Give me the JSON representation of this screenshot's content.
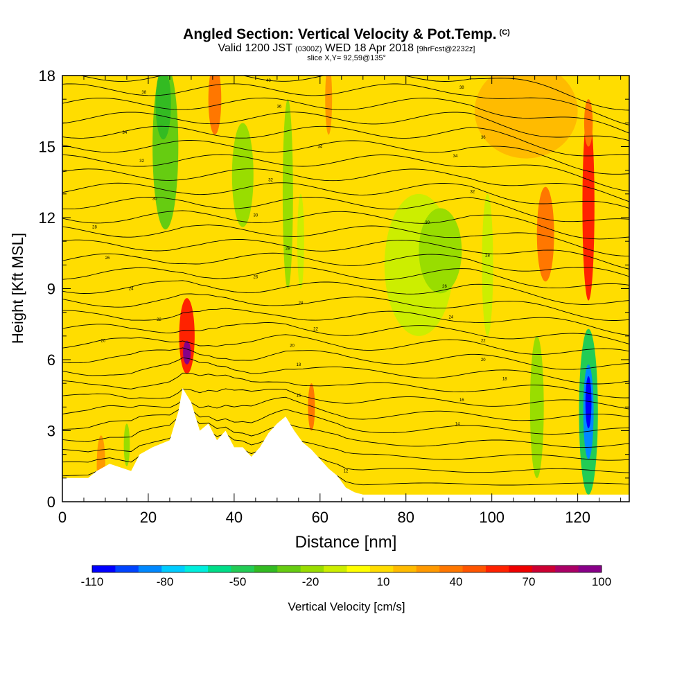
{
  "chart_data": {
    "type": "heatmap",
    "title": "Angled Section: Vertical Velocity & Pot.Temp.",
    "title_suffix": "(C)",
    "subtitle": {
      "valid": "Valid 1200 JST",
      "zulu": "(0300Z)",
      "date": "WED 18 Apr 2018",
      "forecast": "[9hrFcst@2232z]"
    },
    "slice_label": "slice X,Y= 92,59@135°",
    "xlabel": "Distance [nm]",
    "ylabel": "Height [Kft MSL]",
    "xlim": [
      0,
      132
    ],
    "ylim": [
      0,
      18
    ],
    "x_ticks": [
      0,
      20,
      40,
      60,
      80,
      100,
      120
    ],
    "y_ticks": [
      0,
      3,
      6,
      9,
      12,
      15,
      18
    ],
    "colorbar": {
      "label": "Vertical Velocity [cm/s]",
      "labels": [
        -110,
        -80,
        -50,
        -20,
        10,
        40,
        70,
        100
      ],
      "colors": [
        "#0000ff",
        "#0044ff",
        "#0088ff",
        "#00ccff",
        "#00eedd",
        "#00dd88",
        "#22cc55",
        "#33bb22",
        "#66cc11",
        "#99dd00",
        "#ccee00",
        "#ffff00",
        "#ffdd00",
        "#ffbb00",
        "#ff9900",
        "#ff7700",
        "#ff5500",
        "#ff2200",
        "#ee0000",
        "#cc0033",
        "#aa0066",
        "#880088"
      ]
    },
    "background_value": 5,
    "terrain_kft": [
      [
        0,
        1
      ],
      [
        6,
        1
      ],
      [
        8,
        1.3
      ],
      [
        11,
        1.6
      ],
      [
        16,
        1.3
      ],
      [
        18,
        2
      ],
      [
        21,
        2.3
      ],
      [
        25,
        2.6
      ],
      [
        27,
        3.8
      ],
      [
        28,
        4.8
      ],
      [
        30,
        4.2
      ],
      [
        32,
        3
      ],
      [
        34,
        3.3
      ],
      [
        36,
        2.6
      ],
      [
        38,
        3
      ],
      [
        40,
        2.3
      ],
      [
        42,
        2.3
      ],
      [
        44,
        1.9
      ],
      [
        46,
        2.3
      ],
      [
        48,
        2.9
      ],
      [
        50,
        3.3
      ],
      [
        52,
        3.6
      ],
      [
        54,
        3
      ],
      [
        56,
        2.5
      ],
      [
        58,
        2.2
      ],
      [
        60,
        1.8
      ],
      [
        62,
        1.4
      ],
      [
        64,
        1.1
      ],
      [
        66,
        0.6
      ],
      [
        68,
        0.4
      ],
      [
        70,
        0.3
      ],
      [
        132,
        0.3
      ]
    ],
    "velocity_features": [
      {
        "x": 24,
        "y": 15,
        "rx": 3,
        "ry": 3.5,
        "value": -30
      },
      {
        "x": 23.5,
        "y": 16.8,
        "rx": 1.8,
        "ry": 1.5,
        "value": -40
      },
      {
        "x": 29,
        "y": 7,
        "rx": 1.8,
        "ry": 1.6,
        "value": 55
      },
      {
        "x": 29,
        "y": 6.3,
        "rx": 0.9,
        "ry": 0.5,
        "value": 100
      },
      {
        "x": 35.5,
        "y": 17,
        "rx": 1.5,
        "ry": 1.5,
        "value": 35
      },
      {
        "x": 42,
        "y": 13.8,
        "rx": 2.5,
        "ry": 2.2,
        "value": -18
      },
      {
        "x": 52.5,
        "y": 13,
        "rx": 1.2,
        "ry": 4,
        "value": -16
      },
      {
        "x": 55.5,
        "y": 11,
        "rx": 0.8,
        "ry": 2,
        "value": -12
      },
      {
        "x": 58,
        "y": 4,
        "rx": 0.8,
        "ry": 1,
        "value": 35
      },
      {
        "x": 62,
        "y": 17,
        "rx": 0.8,
        "ry": 1.5,
        "value": 25
      },
      {
        "x": 83,
        "y": 10,
        "rx": 8,
        "ry": 3,
        "value": -14
      },
      {
        "x": 88,
        "y": 10.6,
        "rx": 5,
        "ry": 1.8,
        "value": -20
      },
      {
        "x": 99,
        "y": 10,
        "rx": 1.3,
        "ry": 3,
        "value": -14
      },
      {
        "x": 112.5,
        "y": 11.3,
        "rx": 2,
        "ry": 2,
        "value": 38
      },
      {
        "x": 122.5,
        "y": 12.5,
        "rx": 1.4,
        "ry": 4,
        "value": 60
      },
      {
        "x": 122.5,
        "y": 16,
        "rx": 1,
        "ry": 1,
        "value": 40
      },
      {
        "x": 110.5,
        "y": 4,
        "rx": 1.6,
        "ry": 3,
        "value": -22
      },
      {
        "x": 122.5,
        "y": 3.8,
        "rx": 2.2,
        "ry": 3.5,
        "value": -45
      },
      {
        "x": 122.5,
        "y": 3.8,
        "rx": 1.2,
        "ry": 2,
        "value": -85
      },
      {
        "x": 122.5,
        "y": 4.2,
        "rx": 0.7,
        "ry": 1.1,
        "value": -110
      },
      {
        "x": 108,
        "y": 16.5,
        "rx": 12,
        "ry": 2,
        "value": 18
      },
      {
        "x": 9,
        "y": 1.5,
        "rx": 1,
        "ry": 1.3,
        "value": 25
      },
      {
        "x": 15,
        "y": 2.4,
        "rx": 0.7,
        "ry": 0.9,
        "value": -15
      }
    ],
    "isentrope_labels": [
      {
        "x": 19,
        "y": 17.3,
        "text": "38"
      },
      {
        "x": 48,
        "y": 17.8,
        "text": "40"
      },
      {
        "x": 93,
        "y": 17.5,
        "text": "38"
      },
      {
        "x": 14.5,
        "y": 15.6,
        "text": "34"
      },
      {
        "x": 50.5,
        "y": 16.7,
        "text": "36"
      },
      {
        "x": 98,
        "y": 15.4,
        "text": "36"
      },
      {
        "x": 60,
        "y": 15,
        "text": "34"
      },
      {
        "x": 18.5,
        "y": 14.4,
        "text": "32"
      },
      {
        "x": 91.5,
        "y": 14.6,
        "text": "34"
      },
      {
        "x": 48.5,
        "y": 13.6,
        "text": "32"
      },
      {
        "x": 95.5,
        "y": 13.1,
        "text": "32"
      },
      {
        "x": 21.5,
        "y": 12.8,
        "text": "30"
      },
      {
        "x": 45,
        "y": 12.1,
        "text": "30"
      },
      {
        "x": 85,
        "y": 11.8,
        "text": "30"
      },
      {
        "x": 7.5,
        "y": 11.6,
        "text": "28"
      },
      {
        "x": 52.5,
        "y": 10.7,
        "text": "28"
      },
      {
        "x": 99,
        "y": 10.4,
        "text": "28"
      },
      {
        "x": 10.5,
        "y": 10.3,
        "text": "26"
      },
      {
        "x": 45,
        "y": 9.5,
        "text": "26"
      },
      {
        "x": 89,
        "y": 9.1,
        "text": "26"
      },
      {
        "x": 16,
        "y": 9,
        "text": "24"
      },
      {
        "x": 55.5,
        "y": 8.4,
        "text": "24"
      },
      {
        "x": 90.5,
        "y": 7.8,
        "text": "24"
      },
      {
        "x": 22.5,
        "y": 7.7,
        "text": "22"
      },
      {
        "x": 59,
        "y": 7.3,
        "text": "22"
      },
      {
        "x": 98,
        "y": 6.8,
        "text": "22"
      },
      {
        "x": 9.5,
        "y": 6.8,
        "text": "20"
      },
      {
        "x": 53.5,
        "y": 6.6,
        "text": "20"
      },
      {
        "x": 98,
        "y": 6,
        "text": "20"
      },
      {
        "x": 55,
        "y": 5.8,
        "text": "18"
      },
      {
        "x": 103,
        "y": 5.2,
        "text": "18"
      },
      {
        "x": 55,
        "y": 4.5,
        "text": "16"
      },
      {
        "x": 93,
        "y": 4.3,
        "text": "16"
      },
      {
        "x": 92,
        "y": 3.3,
        "text": "14"
      },
      {
        "x": 66,
        "y": 1.3,
        "text": "12"
      }
    ]
  }
}
